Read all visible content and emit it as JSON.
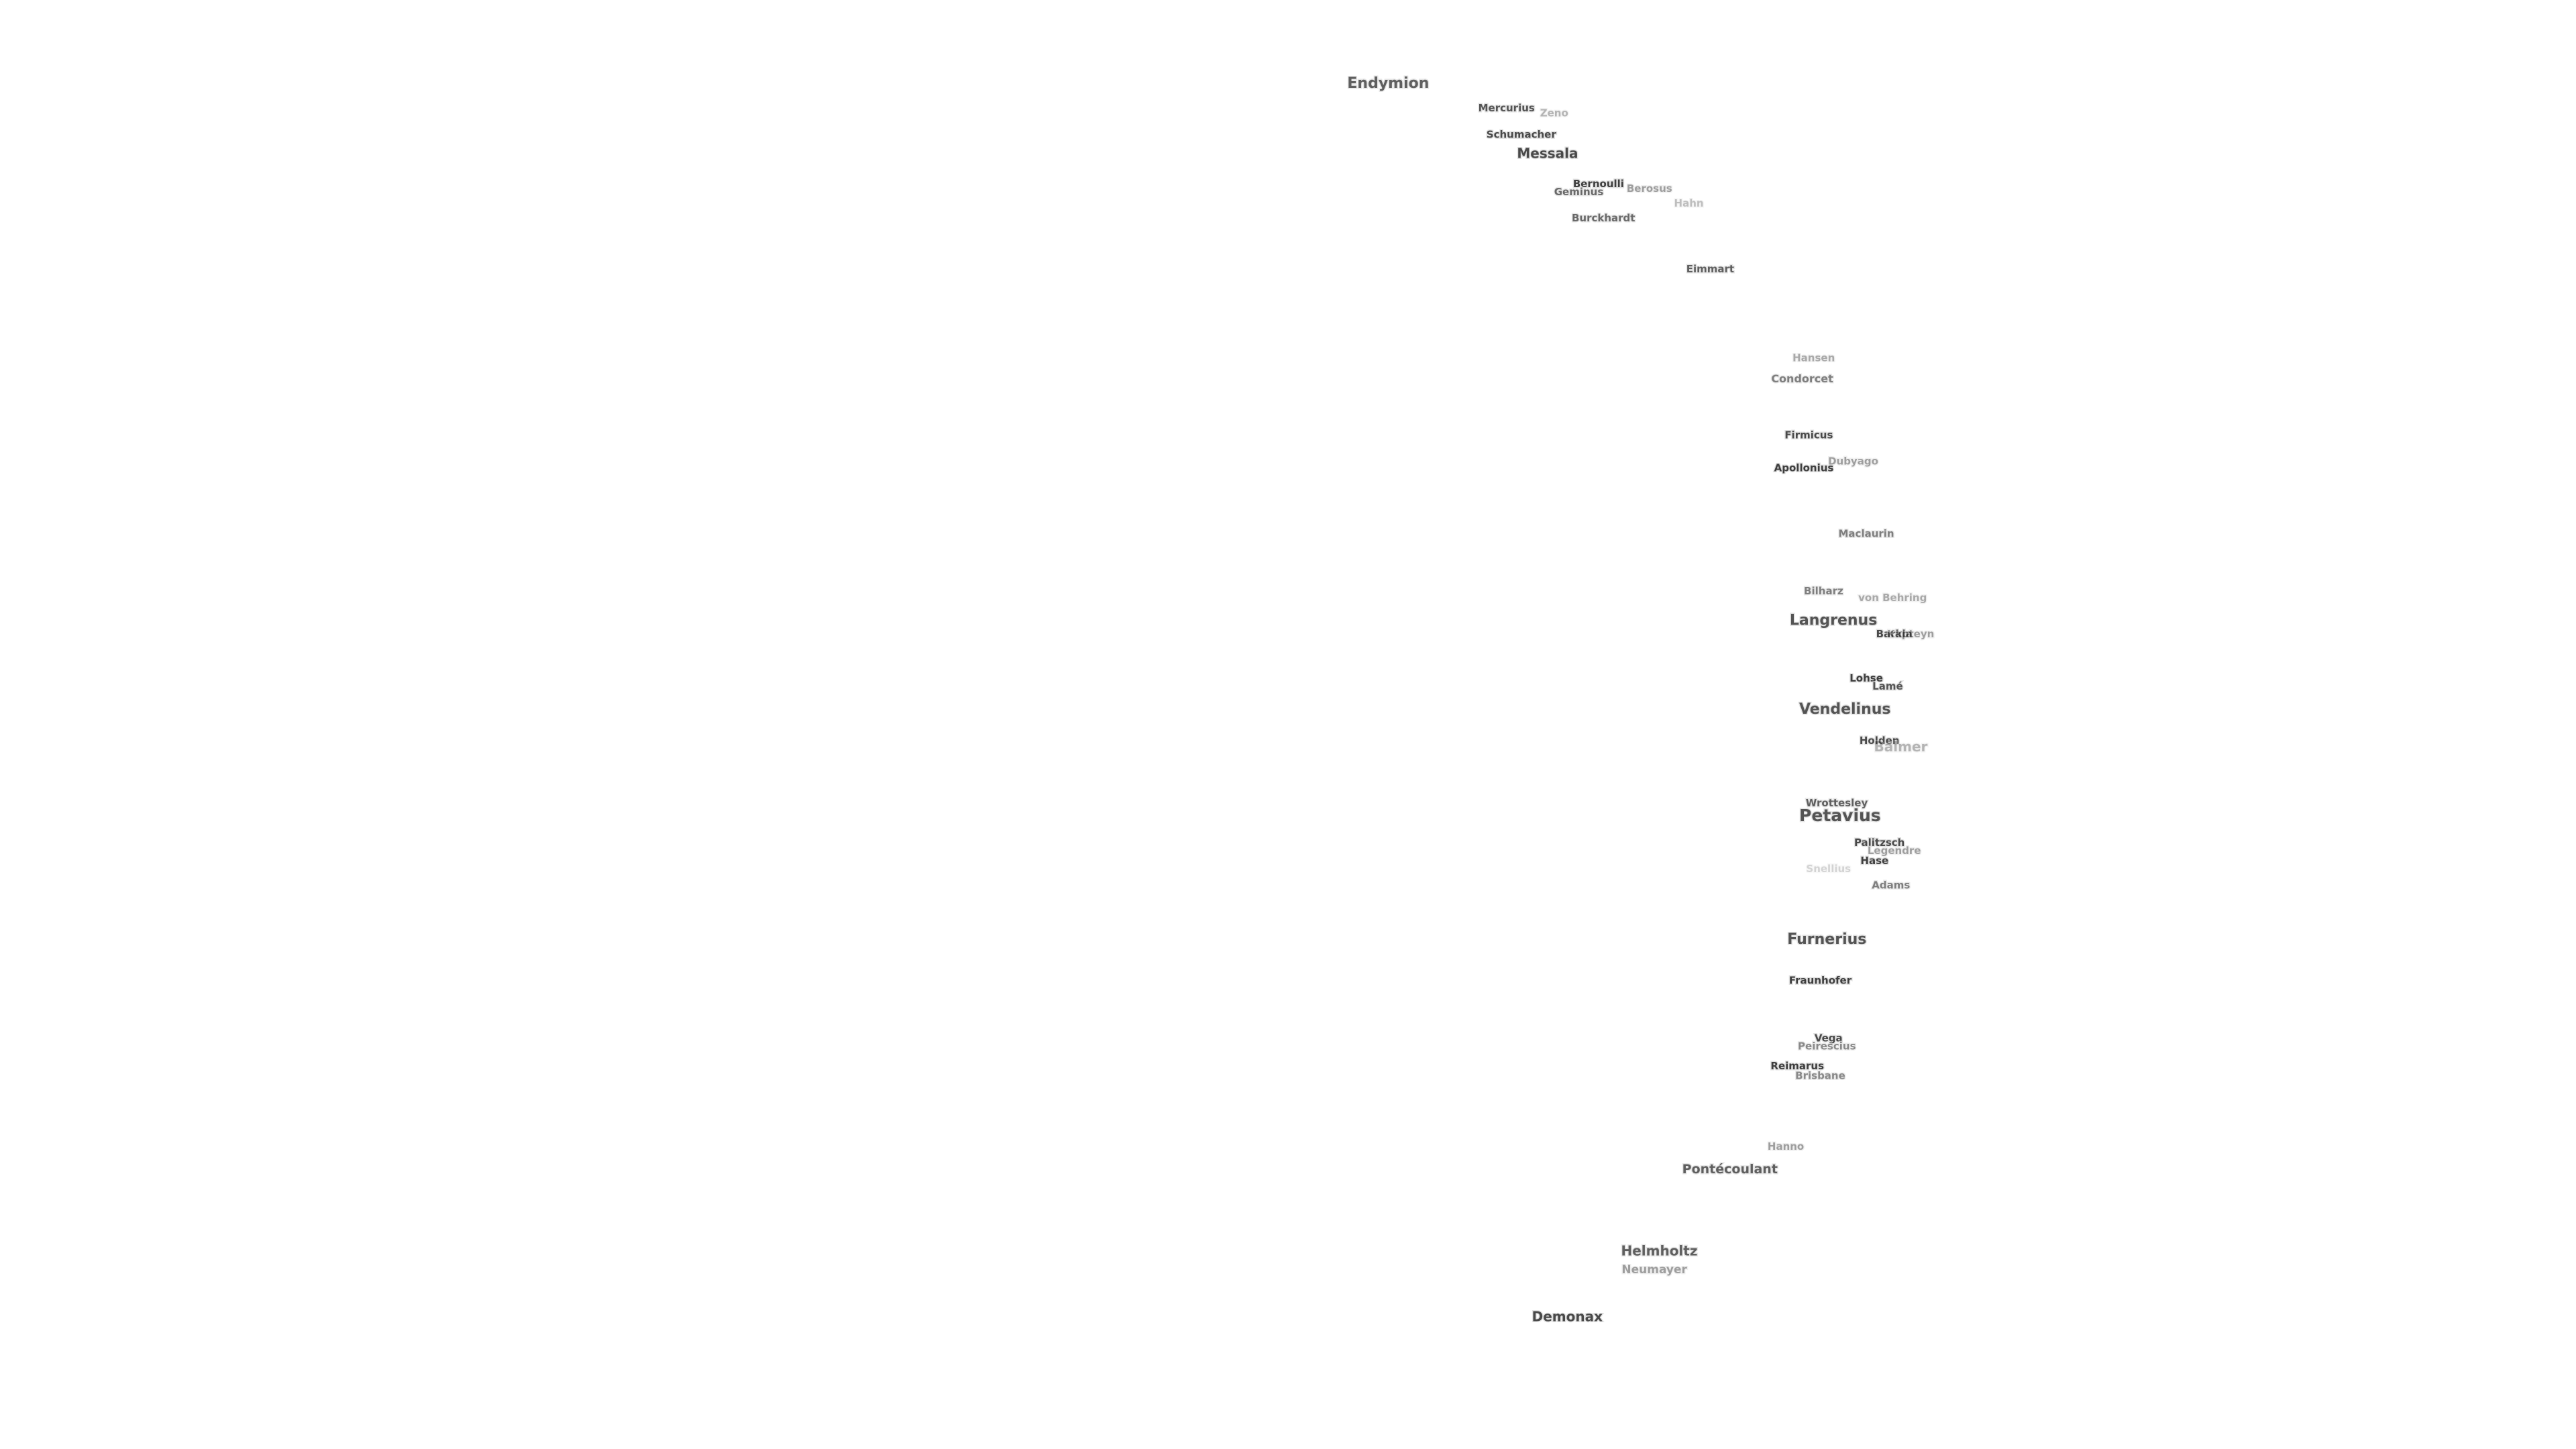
{
  "labels": [
    "Endymion",
    "Mercurius",
    "Zeno",
    "Schumacher",
    "Messala",
    "Bernoulli",
    "Geminus",
    "Berosus",
    "Hahn",
    "Burckhardt",
    "Eimmart",
    "Hansen",
    "Condorcet",
    "Firmicus",
    "Dubyago",
    "Apollonius",
    "Maclaurin",
    "Bilharz",
    "von Behring",
    "Langrenus",
    "Barkla",
    "Kapteyn",
    "Lohse",
    "Lamé",
    "Vendelinus",
    "Holden",
    "Balmer",
    "Wrottesley",
    "Petavius",
    "Palitzsch",
    "Legendre",
    "Hase",
    "Snellius",
    "Adams",
    "Furnerius",
    "Fraunhofer",
    "Vega",
    "Peirescius",
    "Reimarus",
    "Brisbane",
    "Hanno",
    "Pontécoulant",
    "Helmholtz",
    "Neumayer",
    "Demonax"
  ]
}
